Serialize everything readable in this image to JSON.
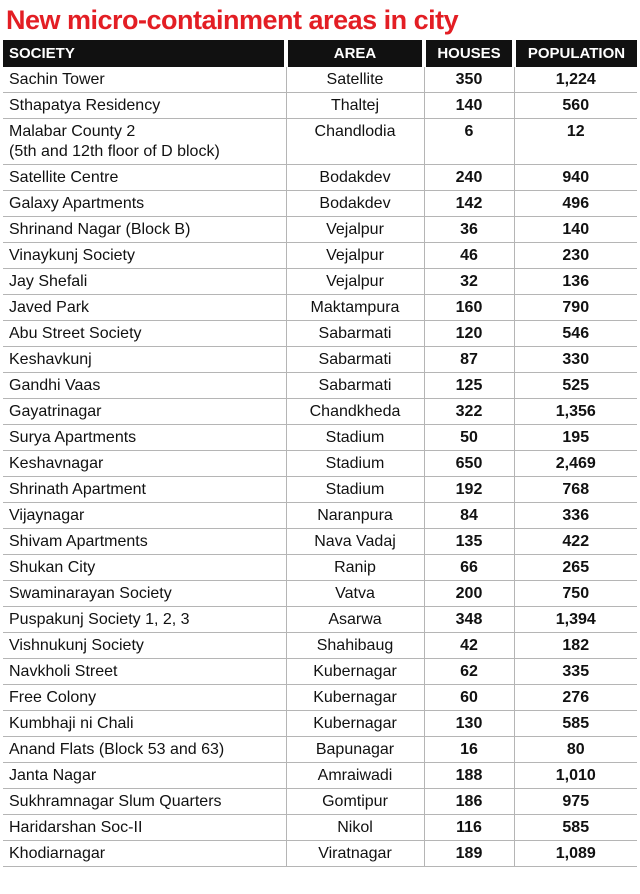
{
  "title": "New micro-containment areas in city",
  "headers": {
    "society": "SOCIETY",
    "area": "AREA",
    "houses": "HOUSES",
    "population": "POPULATION"
  },
  "rows": [
    {
      "society": "Sachin Tower",
      "area": "Satellite",
      "houses": "350",
      "population": "1,224"
    },
    {
      "society": "Sthapatya Residency",
      "area": "Thaltej",
      "houses": "140",
      "population": "560"
    },
    {
      "society": "Malabar County 2",
      "society_sub": "(5th and 12th floor of D block)",
      "area": "Chandlodia",
      "houses": "6",
      "population": "12"
    },
    {
      "society": "Satellite Centre",
      "area": "Bodakdev",
      "houses": "240",
      "population": "940"
    },
    {
      "society": "Galaxy Apartments",
      "area": "Bodakdev",
      "houses": "142",
      "population": "496"
    },
    {
      "society": "Shrinand Nagar (Block B)",
      "area": "Vejalpur",
      "houses": "36",
      "population": "140"
    },
    {
      "society": "Vinaykunj Society",
      "area": "Vejalpur",
      "houses": "46",
      "population": "230"
    },
    {
      "society": "Jay Shefali",
      "area": "Vejalpur",
      "houses": "32",
      "population": "136"
    },
    {
      "society": "Javed Park",
      "area": "Maktampura",
      "houses": "160",
      "population": "790"
    },
    {
      "society": "Abu Street Society",
      "area": "Sabarmati",
      "houses": "120",
      "population": "546"
    },
    {
      "society": "Keshavkunj",
      "area": "Sabarmati",
      "houses": "87",
      "population": "330"
    },
    {
      "society": "Gandhi Vaas",
      "area": "Sabarmati",
      "houses": "125",
      "population": "525"
    },
    {
      "society": "Gayatrinagar",
      "area": "Chandkheda",
      "houses": "322",
      "population": "1,356"
    },
    {
      "society": "Surya Apartments",
      "area": "Stadium",
      "houses": "50",
      "population": "195"
    },
    {
      "society": "Keshavnagar",
      "area": "Stadium",
      "houses": "650",
      "population": "2,469"
    },
    {
      "society": "Shrinath Apartment",
      "area": "Stadium",
      "houses": "192",
      "population": "768"
    },
    {
      "society": "Vijaynagar",
      "area": "Naranpura",
      "houses": "84",
      "population": "336"
    },
    {
      "society": "Shivam Apartments",
      "area": "Nava Vadaj",
      "houses": "135",
      "population": "422"
    },
    {
      "society": "Shukan City",
      "area": "Ranip",
      "houses": "66",
      "population": "265"
    },
    {
      "society": "Swaminarayan  Society",
      "area": "Vatva",
      "houses": "200",
      "population": "750"
    },
    {
      "society": "Puspakunj Society 1, 2, 3",
      "area": "Asarwa",
      "houses": "348",
      "population": "1,394"
    },
    {
      "society": "Vishnukunj Society",
      "area": "Shahibaug",
      "houses": "42",
      "population": "182"
    },
    {
      "society": "Navkholi Street",
      "area": "Kubernagar",
      "houses": "62",
      "population": "335"
    },
    {
      "society": "Free Colony",
      "area": "Kubernagar",
      "houses": "60",
      "population": "276"
    },
    {
      "society": "Kumbhaji ni Chali",
      "area": "Kubernagar",
      "houses": "130",
      "population": "585"
    },
    {
      "society": "Anand Flats (Block 53 and 63)",
      "area": "Bapunagar",
      "houses": "16",
      "population": "80"
    },
    {
      "society": "Janta Nagar",
      "area": "Amraiwadi",
      "houses": "188",
      "population": "1,010"
    },
    {
      "society": "Sukhramnagar Slum Quarters",
      "area": "Gomtipur",
      "houses": "186",
      "population": "975"
    },
    {
      "society": "Haridarshan Soc-II",
      "area": "Nikol",
      "houses": "116",
      "population": "585"
    },
    {
      "society": "Khodiarnagar",
      "area": "Viratnagar",
      "houses": "189",
      "population": "1,089"
    }
  ]
}
